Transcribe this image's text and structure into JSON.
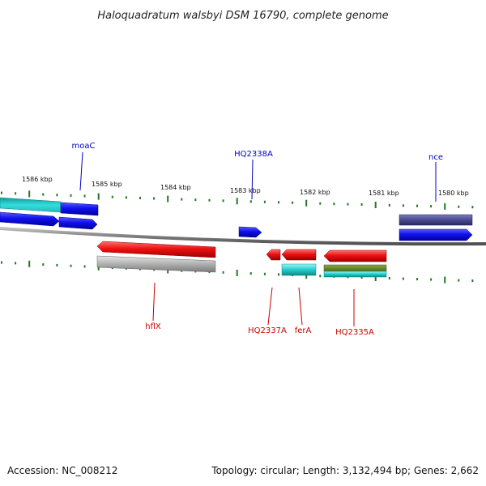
{
  "title": "Haloquadratum walsbyi DSM 16790, complete genome",
  "footer": {
    "accession": "Accession: NC_008212",
    "summary": "Topology: circular; Length: 3,132,494 bp; Genes: 2,662"
  },
  "scale": {
    "labels": [
      "1586 kbp",
      "1585 kbp",
      "1584 kbp",
      "1583 kbp",
      "1582 kbp",
      "1581 kbp",
      "1580 kbp"
    ]
  },
  "genes": {
    "moaC": "moaC",
    "HQ2338A": "HQ2338A",
    "nce": "nce",
    "hflX": "hflX",
    "HQ2337A": "HQ2337A",
    "ferA": "ferA",
    "HQ2335A": "HQ2335A"
  },
  "colors": {
    "forward_gene": "#1010ee",
    "reverse_gene": "#ee1111",
    "cds_cyan": "#22cccc",
    "cds_grey": "#b0b0b0",
    "cds_navy": "#4a4a90",
    "cds_olive": "#6a8a30",
    "tick_green": "#227722",
    "backbone": "#808080"
  }
}
